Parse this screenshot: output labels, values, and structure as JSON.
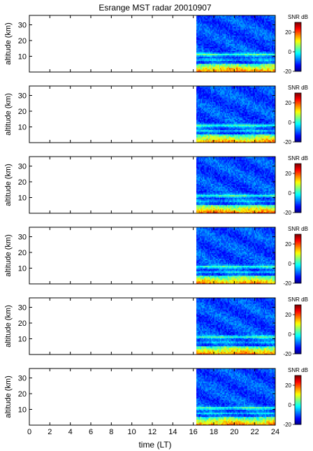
{
  "figure": {
    "title": "Esrange MST radar 20010907",
    "xlabel": "time (LT)"
  },
  "chart_data": {
    "type": "heatmap",
    "title": "Esrange MST radar 20010907",
    "xlabel": "time (LT)",
    "xlim": [
      0,
      24
    ],
    "xticks": [
      0,
      2,
      4,
      6,
      8,
      10,
      12,
      14,
      16,
      18,
      20,
      22,
      24
    ],
    "data_start_time": 16.3,
    "panels": [
      {
        "ylabel": "altitude (km)",
        "ylim": [
          0,
          36
        ],
        "yticks": [
          10,
          20,
          30
        ]
      },
      {
        "ylabel": "altitude (km)",
        "ylim": [
          0,
          36
        ],
        "yticks": [
          10,
          20,
          30
        ]
      },
      {
        "ylabel": "altitude (km)",
        "ylim": [
          0,
          36
        ],
        "yticks": [
          10,
          20,
          30
        ]
      },
      {
        "ylabel": "altitude (km)",
        "ylim": [
          0,
          36
        ],
        "yticks": [
          10,
          20,
          30
        ]
      },
      {
        "ylabel": "altitude (km)",
        "ylim": [
          0,
          36
        ],
        "yticks": [
          10,
          20,
          30
        ]
      },
      {
        "ylabel": "altitude (km)",
        "ylim": [
          0,
          36
        ],
        "yticks": [
          10,
          20,
          30
        ]
      }
    ],
    "colorbar": {
      "label": "SNR dB",
      "range": [
        -20,
        30
      ],
      "ticks": [
        -20,
        0,
        20
      ],
      "colormap": "jet"
    }
  }
}
